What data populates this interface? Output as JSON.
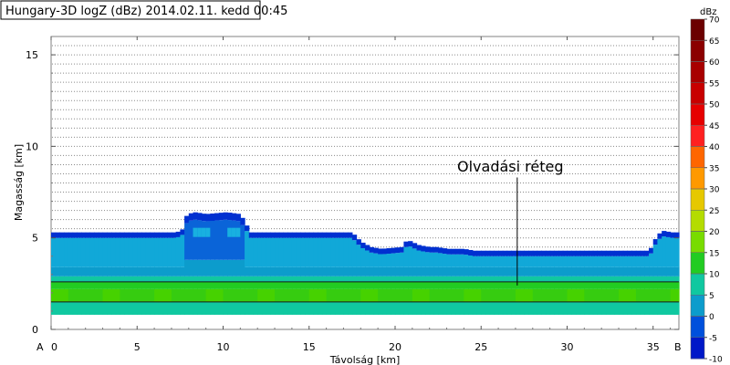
{
  "chart_data": {
    "type": "heatmap",
    "title": "Hungary-3D logZ (dBz) 2014.02.11. kedd 00:45",
    "xlabel": "Távolság [km]",
    "ylabel": "Magasság [km]",
    "xlim": [
      0,
      36.5
    ],
    "ylim": [
      0,
      16
    ],
    "x_ticks": [
      0,
      5,
      10,
      15,
      20,
      25,
      30,
      35
    ],
    "y_ticks": [
      0,
      5,
      10,
      15
    ],
    "x_start_label": "A",
    "x_end_label": "B",
    "y_gridlines": [
      3.5,
      4,
      4.5,
      5,
      5.5,
      6,
      6.5,
      7,
      7.5,
      8,
      8.5,
      9,
      9.5,
      10,
      10.5,
      11,
      11.5,
      12,
      12.5,
      13,
      13.5,
      14,
      14.5,
      15,
      15.5
    ],
    "grid": "dotted horizontal",
    "annotation": {
      "text": "Olvadási réteg",
      "x": 27.1,
      "y_from": 2.4,
      "y_to": 8.3
    },
    "bright_band_lines_km": [
      1.5,
      2.6
    ],
    "colorbar": {
      "unit": "dBz",
      "levels": [
        70,
        65,
        60,
        55,
        50,
        45,
        40,
        35,
        30,
        25,
        20,
        15,
        10,
        5,
        0,
        -5,
        -10
      ],
      "colors": [
        "#6b0000",
        "#8b0000",
        "#a80000",
        "#c80000",
        "#e60000",
        "#ff2020",
        "#ff6600",
        "#ff9900",
        "#e6c800",
        "#b4dc00",
        "#78dc00",
        "#22cc22",
        "#10c8a0",
        "#0c9ccc",
        "#0050dc",
        "#0018c8",
        "#000090"
      ]
    },
    "echo_top_km": [
      [
        0,
        5.3
      ],
      [
        7.3,
        5.3
      ],
      [
        7.7,
        5.5
      ],
      [
        7.9,
        6.3
      ],
      [
        8.4,
        6.4
      ],
      [
        9.0,
        6.3
      ],
      [
        10.2,
        6.4
      ],
      [
        11.0,
        6.3
      ],
      [
        11.6,
        5.3
      ],
      [
        17.5,
        5.3
      ],
      [
        18.0,
        4.8
      ],
      [
        18.6,
        4.5
      ],
      [
        19.2,
        4.4
      ],
      [
        20.4,
        4.5
      ],
      [
        20.7,
        4.9
      ],
      [
        21.4,
        4.6
      ],
      [
        22.0,
        4.5
      ],
      [
        22.4,
        4.5
      ],
      [
        23.1,
        4.4
      ],
      [
        24.0,
        4.4
      ],
      [
        24.6,
        4.3
      ],
      [
        34.8,
        4.3
      ],
      [
        35.1,
        4.9
      ],
      [
        35.5,
        5.4
      ],
      [
        36.1,
        5.3
      ],
      [
        36.3,
        5.3
      ]
    ],
    "layers": [
      {
        "from_km": 2.7,
        "to_km": 4.3,
        "dbz": "5-10"
      },
      {
        "from_km": 2.2,
        "to_km": 2.6,
        "dbz": "15-20"
      },
      {
        "from_km": 1.5,
        "to_km": 2.2,
        "dbz": "20-25"
      },
      {
        "from_km": 0.8,
        "to_km": 1.5,
        "dbz": "10-15"
      }
    ]
  }
}
